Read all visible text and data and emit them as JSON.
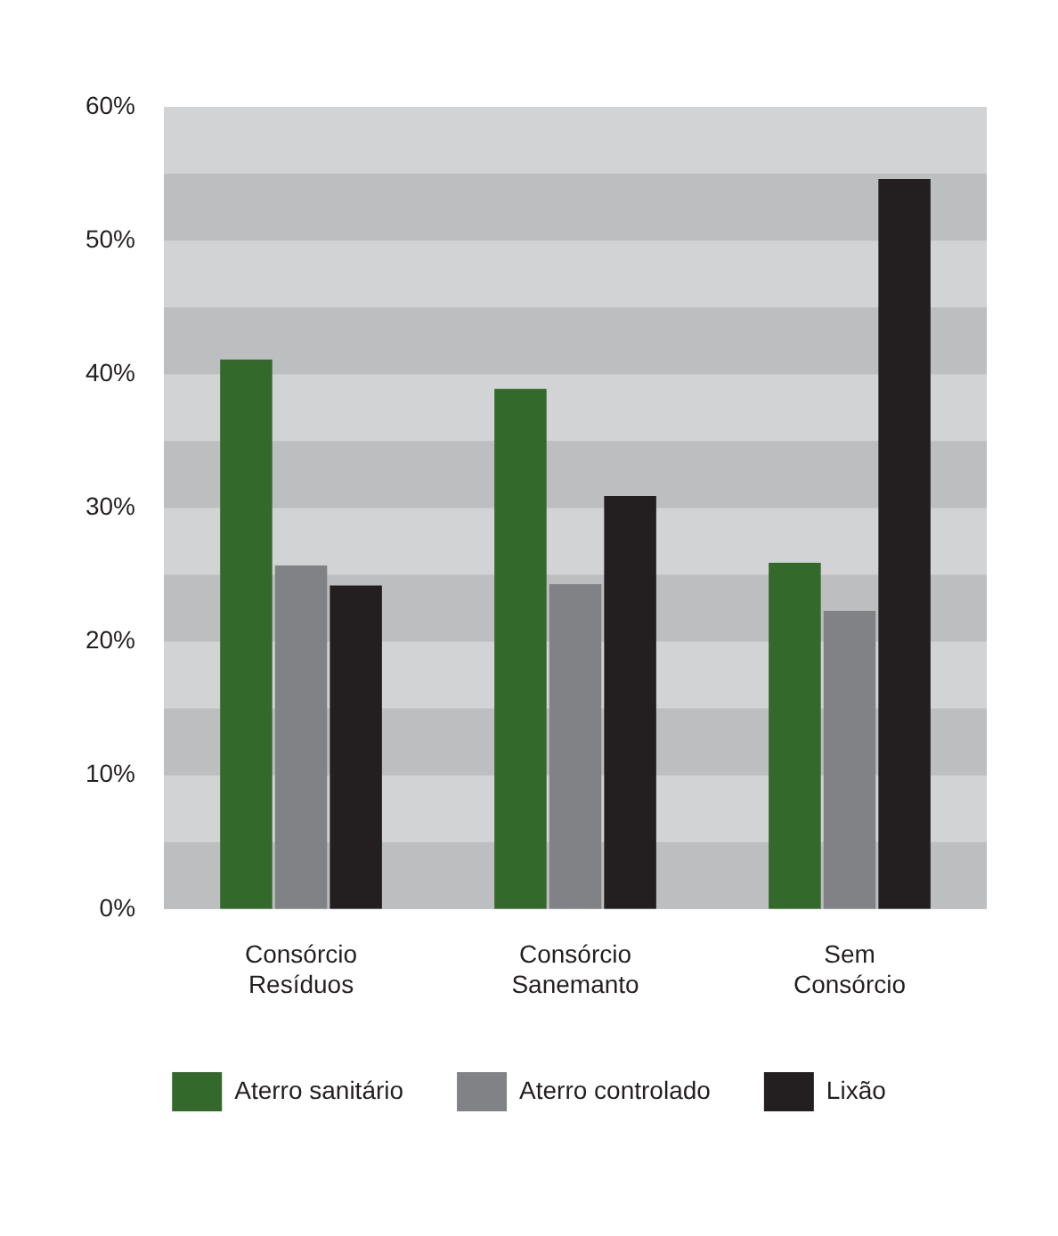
{
  "chart_data": {
    "type": "bar",
    "categories": [
      "Consórcio Resíduos",
      "Consórcio Sanemanto",
      "Sem Consórcio"
    ],
    "series": [
      {
        "name": "Aterro sanitário",
        "color": "#33692a",
        "values": [
          41.1,
          38.9,
          25.9
        ]
      },
      {
        "name": "Aterro controlado",
        "color": "#808285",
        "values": [
          25.7,
          24.3,
          22.3
        ]
      },
      {
        "name": "Lixão",
        "color": "#231f20",
        "values": [
          24.2,
          30.9,
          54.6
        ]
      }
    ],
    "ylim": [
      0,
      60
    ],
    "yticks": [
      {
        "value": 0,
        "label": "0%"
      },
      {
        "value": 10,
        "label": "10%"
      },
      {
        "value": 20,
        "label": "20%"
      },
      {
        "value": 30,
        "label": "30%"
      },
      {
        "value": 40,
        "label": "40%"
      },
      {
        "value": 50,
        "label": "50%"
      },
      {
        "value": 60,
        "label": "60%"
      }
    ],
    "bands": [
      {
        "axis": "y",
        "from": 0,
        "to": 5,
        "color": "#bcbec0"
      },
      {
        "axis": "y",
        "from": 10,
        "to": 15,
        "color": "#bcbec0"
      },
      {
        "axis": "y",
        "from": 20,
        "to": 25,
        "color": "#bcbec0"
      },
      {
        "axis": "y",
        "from": 30,
        "to": 35,
        "color": "#bcbec0"
      },
      {
        "axis": "y",
        "from": 40,
        "to": 45,
        "color": "#bcbec0"
      },
      {
        "axis": "y",
        "from": 50,
        "to": 55,
        "color": "#bcbec0"
      }
    ],
    "legend": "bottom"
  }
}
